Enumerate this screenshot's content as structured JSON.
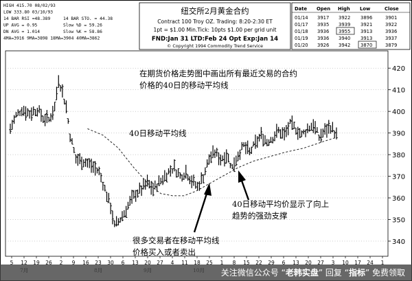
{
  "chart_data": {
    "type": "bar",
    "title": "纽交所2月黄金合约",
    "contract": {
      "line1": "Contract 100 Troy OZ.  Trading: 8:20-2:30 ET",
      "line2": "1pt = $1.00  Min.Tick: 10pts  $1.00 per grid unit",
      "line3": "FND:Jan 31   LTD:Feb 24   Opt Exp:Jan 14",
      "copyright": "© Copyright 1994 Commodity Trend Service"
    },
    "stats_left": [
      {
        "label": "HIGH",
        "value": "415.70",
        "extra": "08/02/93"
      },
      {
        "label": "LOW",
        "value": "333.80",
        "extra": "03/10/93"
      },
      {
        "label": "14 BAR RSI",
        "value": "=48.389",
        "extra": ""
      },
      {
        "label": "UP AVG",
        "value": "= 0.95",
        "extra": ""
      },
      {
        "label": "DN AVG",
        "value": "= 1.014",
        "extra": ""
      },
      {
        "label": "4MA=3916",
        "value": "9MA=3898",
        "extra": "18MA=3904  40MA=3862"
      }
    ],
    "stats_mid": [
      {
        "label": "14 BAR STO.",
        "value": "= 44.38"
      },
      {
        "label": "Slow %D",
        "value": "= 59.26"
      },
      {
        "label": "Slow %K",
        "value": "= 58.86"
      }
    ],
    "quote_table": {
      "headers": [
        "Date",
        "Open",
        "High",
        "Low",
        "Close"
      ],
      "rows": [
        [
          "01/14",
          "3917",
          "3922",
          "3896",
          "3901"
        ],
        [
          "01/17",
          "3935",
          "3939",
          "3921",
          "3922"
        ],
        [
          "01/18",
          "3936",
          "3955",
          "3913",
          "3936"
        ],
        [
          "01/19",
          "3936",
          "3940",
          "3913",
          "3937"
        ],
        [
          "01/20",
          "3926",
          "3942",
          "3870",
          "3879"
        ]
      ],
      "boxed": [
        [
          2,
          2
        ],
        [
          4,
          3
        ]
      ]
    },
    "y_ticks": [
      340,
      350,
      360,
      370,
      380,
      390,
      400,
      410,
      420
    ],
    "ylim": [
      333,
      428
    ],
    "x_ticks": [
      "5",
      "12",
      "19",
      "26",
      "2",
      "9",
      "16",
      "23",
      "30",
      "6",
      "13",
      "20",
      "27",
      "4",
      "11",
      "18",
      "25",
      "1",
      "8",
      "15",
      "22",
      "29",
      "6",
      "13",
      "20",
      "27",
      "3",
      "10",
      "17",
      "24",
      "1"
    ],
    "months": [
      {
        "label": "7月",
        "tick_index": 0
      },
      {
        "label": "8月",
        "tick_index": 6
      },
      {
        "label": "9月",
        "tick_index": 10
      },
      {
        "label": "10月",
        "tick_index": 14
      }
    ],
    "annotations": {
      "top": "在期货价格走势图中画出所有最近交易的合约\n价格的40日的移动平均线",
      "ma_label": "40日移动平均线",
      "support": "40日移动平均价显示了向上\n趋势的强劲支撑",
      "buy_sell": "很多交易者在移动平均线\n价格买入或者卖出"
    },
    "series": [
      {
        "kind": "ohlc",
        "count": 170,
        "keypoints": [
          [
            0,
            392
          ],
          [
            3,
            398
          ],
          [
            6,
            401
          ],
          [
            10,
            399
          ],
          [
            14,
            401
          ],
          [
            17,
            397
          ],
          [
            20,
            396
          ],
          [
            23,
            402
          ],
          [
            25,
            415
          ],
          [
            27,
            409
          ],
          [
            29,
            402
          ],
          [
            31,
            389
          ],
          [
            34,
            378
          ],
          [
            38,
            377
          ],
          [
            42,
            375
          ],
          [
            46,
            372
          ],
          [
            49,
            364
          ],
          [
            52,
            356
          ],
          [
            54,
            347
          ],
          [
            56,
            349
          ],
          [
            59,
            353
          ],
          [
            62,
            358
          ],
          [
            65,
            362
          ],
          [
            68,
            364
          ],
          [
            71,
            367
          ],
          [
            74,
            364
          ],
          [
            78,
            368
          ],
          [
            82,
            372
          ],
          [
            85,
            374
          ],
          [
            88,
            370
          ],
          [
            91,
            372
          ],
          [
            94,
            368
          ],
          [
            97,
            365
          ],
          [
            100,
            370
          ],
          [
            103,
            378
          ],
          [
            106,
            381
          ],
          [
            109,
            378
          ],
          [
            112,
            380
          ],
          [
            115,
            374
          ],
          [
            118,
            380
          ],
          [
            121,
            384
          ],
          [
            124,
            381
          ],
          [
            127,
            385
          ],
          [
            130,
            389
          ],
          [
            133,
            386
          ],
          [
            136,
            388
          ],
          [
            139,
            391
          ],
          [
            142,
            389
          ],
          [
            145,
            394
          ],
          [
            148,
            392
          ],
          [
            151,
            389
          ],
          [
            154,
            392
          ],
          [
            157,
            394
          ],
          [
            160,
            388
          ],
          [
            163,
            391
          ],
          [
            166,
            393
          ],
          [
            169,
            389
          ]
        ]
      },
      {
        "kind": "moving_average",
        "name": "40日移动平均线",
        "start_index": 40,
        "values": [
          [
            40,
            392
          ],
          [
            48,
            389
          ],
          [
            56,
            383
          ],
          [
            64,
            374
          ],
          [
            72,
            366
          ],
          [
            78,
            362
          ],
          [
            84,
            361
          ],
          [
            90,
            361
          ],
          [
            96,
            363
          ],
          [
            102,
            366
          ],
          [
            110,
            370
          ],
          [
            118,
            374
          ],
          [
            126,
            377
          ],
          [
            134,
            379
          ],
          [
            142,
            381
          ],
          [
            152,
            383
          ],
          [
            162,
            386
          ],
          [
            169,
            388
          ]
        ]
      }
    ]
  },
  "footer": {
    "prefix": "关注微信公众号",
    "name1": "老韩实盘",
    "middle": "回复",
    "name2": "指标",
    "suffix": "免费领取"
  }
}
